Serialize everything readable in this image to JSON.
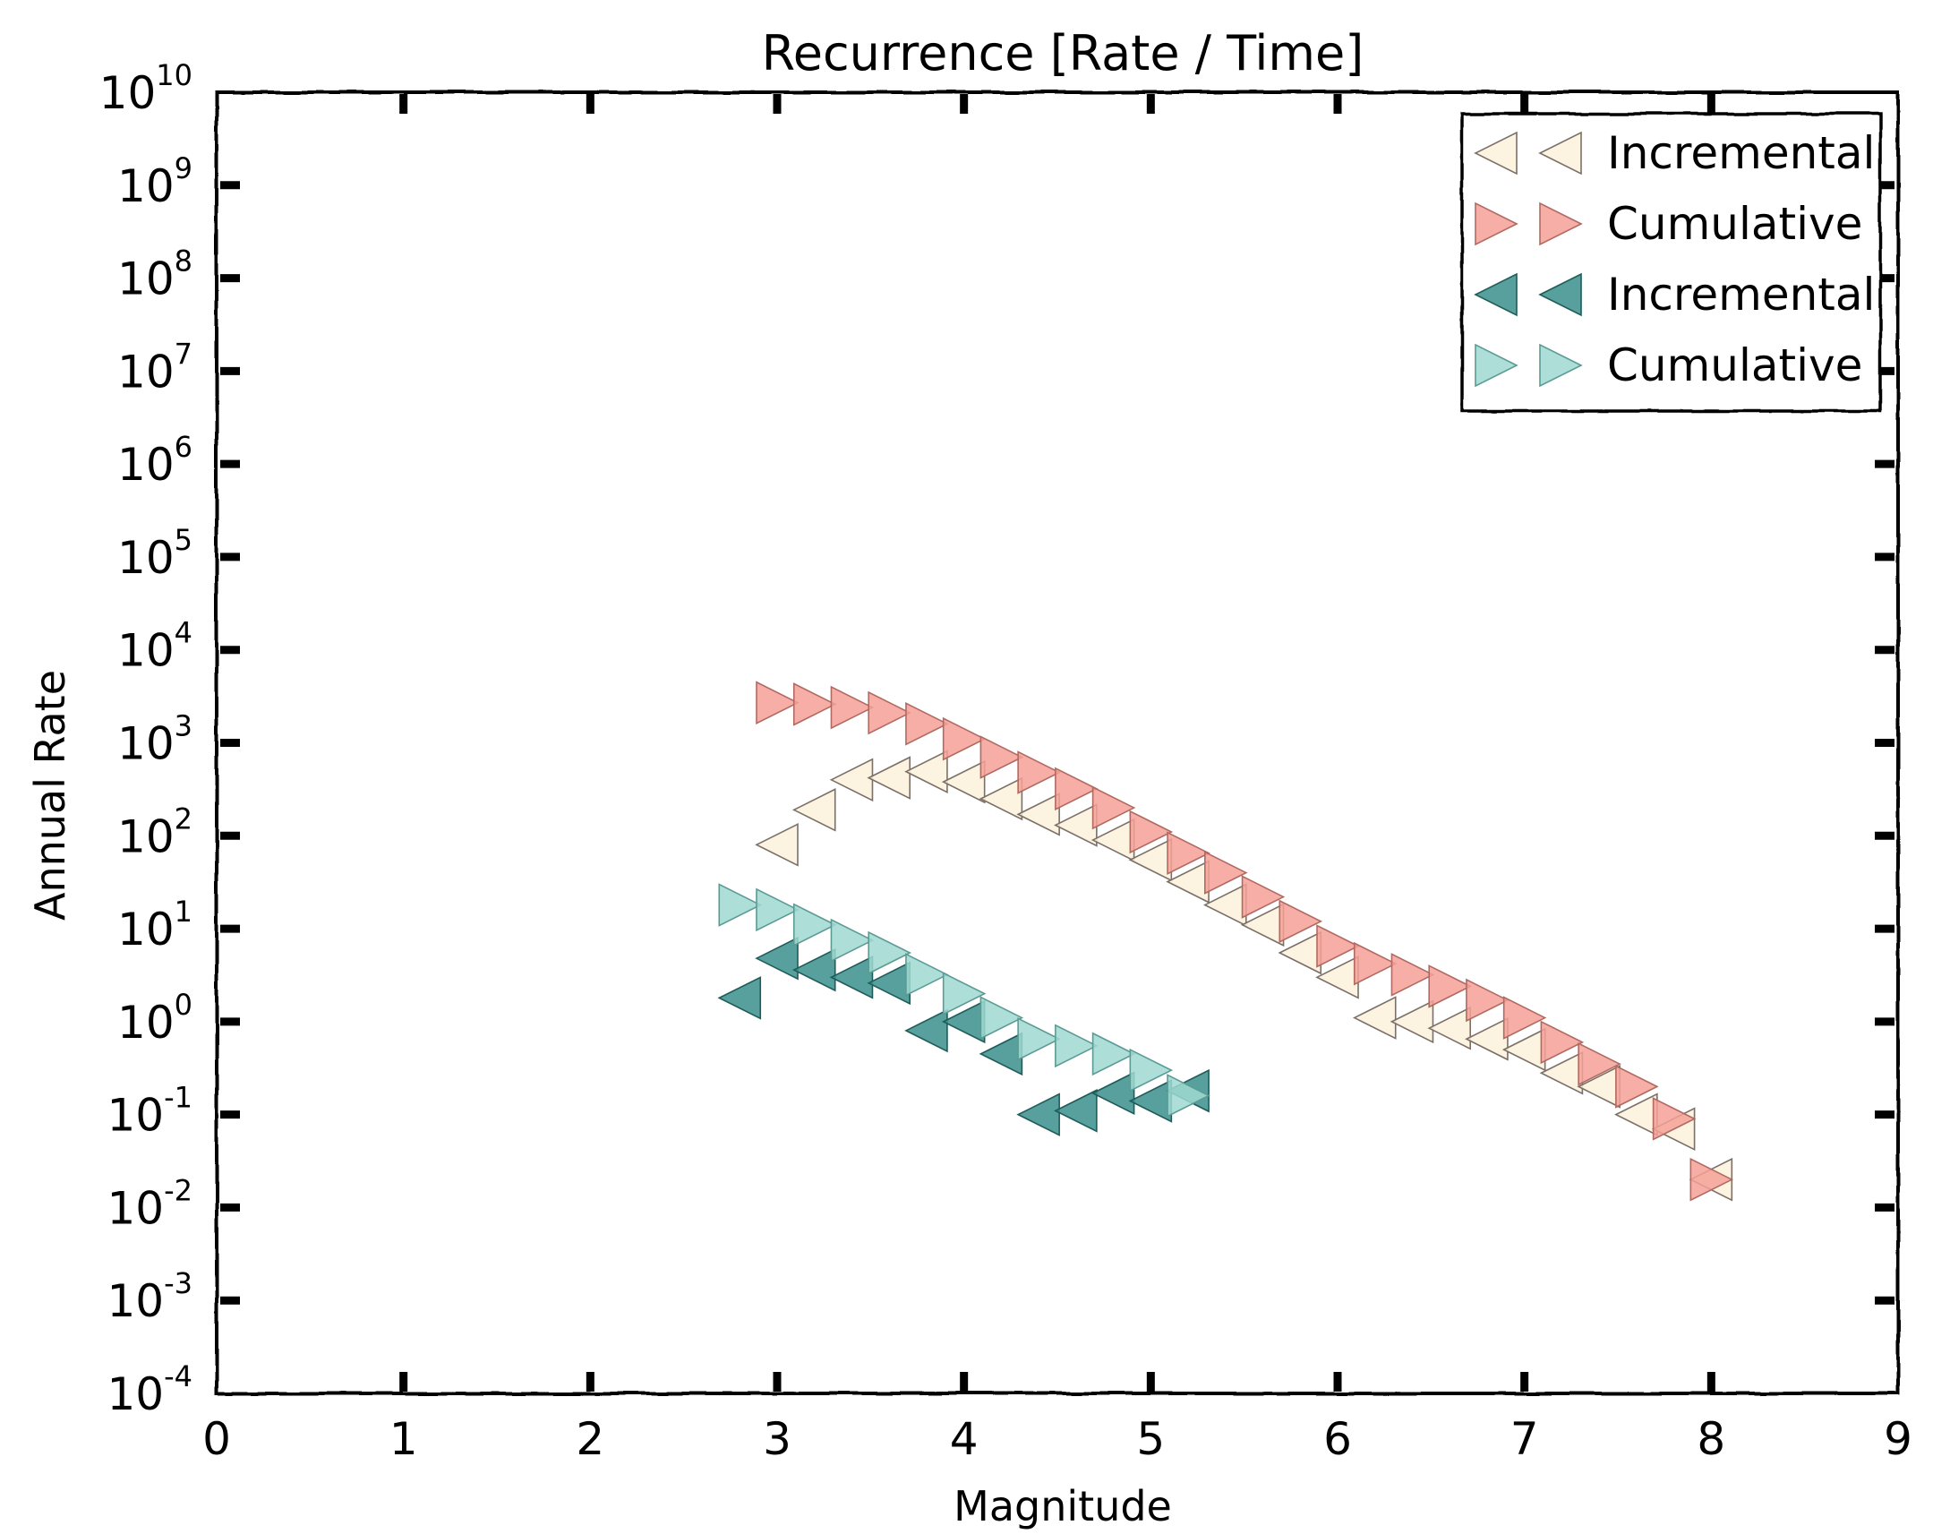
{
  "chart_data": {
    "type": "scatter",
    "title": "Recurrence [Rate / Time]",
    "xlabel": "Magnitude",
    "ylabel": "Annual Rate",
    "xlim": [
      0,
      9
    ],
    "ylim": [
      0.0001,
      10000000000
    ],
    "yscale": "log",
    "x_ticks": [
      "0",
      "1",
      "2",
      "3",
      "4",
      "5",
      "6",
      "7",
      "8",
      "9"
    ],
    "y_ticks": [
      {
        "base": "10",
        "exp": "-4"
      },
      {
        "base": "10",
        "exp": "-3"
      },
      {
        "base": "10",
        "exp": "-2"
      },
      {
        "base": "10",
        "exp": "-1"
      },
      {
        "base": "10",
        "exp": "0"
      },
      {
        "base": "10",
        "exp": "1"
      },
      {
        "base": "10",
        "exp": "2"
      },
      {
        "base": "10",
        "exp": "3"
      },
      {
        "base": "10",
        "exp": "4"
      },
      {
        "base": "10",
        "exp": "5"
      },
      {
        "base": "10",
        "exp": "6"
      },
      {
        "base": "10",
        "exp": "7"
      },
      {
        "base": "10",
        "exp": "8"
      },
      {
        "base": "10",
        "exp": "9"
      },
      {
        "base": "10",
        "exp": "10"
      }
    ],
    "grid": false,
    "legend_position": "top-right",
    "series": [
      {
        "name": "Incremental",
        "marker": "triangle-left",
        "color": "#fdf1dc",
        "edge": "#7a7068",
        "x": [
          3.0,
          3.2,
          3.4,
          3.6,
          3.8,
          4.0,
          4.2,
          4.4,
          4.6,
          4.8,
          5.0,
          5.2,
          5.4,
          5.6,
          5.8,
          6.0,
          6.2,
          6.4,
          6.6,
          6.8,
          7.0,
          7.2,
          7.4,
          7.6,
          7.8,
          8.0
        ],
        "y": [
          80,
          190,
          400,
          420,
          490,
          380,
          250,
          170,
          130,
          90,
          55,
          32,
          18,
          11,
          5.5,
          3.0,
          1.1,
          1.0,
          0.85,
          0.65,
          0.5,
          0.28,
          0.2,
          0.1,
          0.07,
          0.02
        ]
      },
      {
        "name": "Cumulative",
        "marker": "triangle-right",
        "color": "#f4a096",
        "edge": "#b06a62",
        "x": [
          3.0,
          3.2,
          3.4,
          3.6,
          3.8,
          4.0,
          4.2,
          4.4,
          4.6,
          4.8,
          5.0,
          5.2,
          5.4,
          5.6,
          5.8,
          6.0,
          6.2,
          6.4,
          6.6,
          6.8,
          7.0,
          7.2,
          7.4,
          7.6,
          7.8,
          8.0
        ],
        "y": [
          2700,
          2600,
          2400,
          2100,
          1600,
          1100,
          700,
          480,
          320,
          200,
          110,
          65,
          40,
          22,
          12,
          6.5,
          4.2,
          3.2,
          2.4,
          1.7,
          1.1,
          0.6,
          0.35,
          0.2,
          0.09,
          0.02
        ]
      },
      {
        "name": "Incremental",
        "marker": "triangle-left",
        "color": "#3b8f8c",
        "edge": "#1f5c59",
        "x": [
          2.8,
          3.0,
          3.2,
          3.4,
          3.6,
          3.8,
          4.0,
          4.2,
          4.4,
          4.6,
          4.8,
          5.0,
          5.2
        ],
        "y": [
          1.8,
          4.8,
          3.6,
          3.0,
          2.6,
          0.8,
          1.0,
          0.45,
          0.1,
          0.11,
          0.17,
          0.14,
          0.18
        ]
      },
      {
        "name": "Cumulative",
        "marker": "triangle-right",
        "color": "#9fd9d1",
        "edge": "#5c9b94",
        "x": [
          2.8,
          3.0,
          3.2,
          3.4,
          3.6,
          3.8,
          4.0,
          4.2,
          4.4,
          4.6,
          4.8,
          5.0,
          5.2
        ],
        "y": [
          18,
          16,
          11,
          7.5,
          5.5,
          3.2,
          2.0,
          1.1,
          0.65,
          0.55,
          0.45,
          0.3,
          0.16
        ]
      }
    ]
  }
}
